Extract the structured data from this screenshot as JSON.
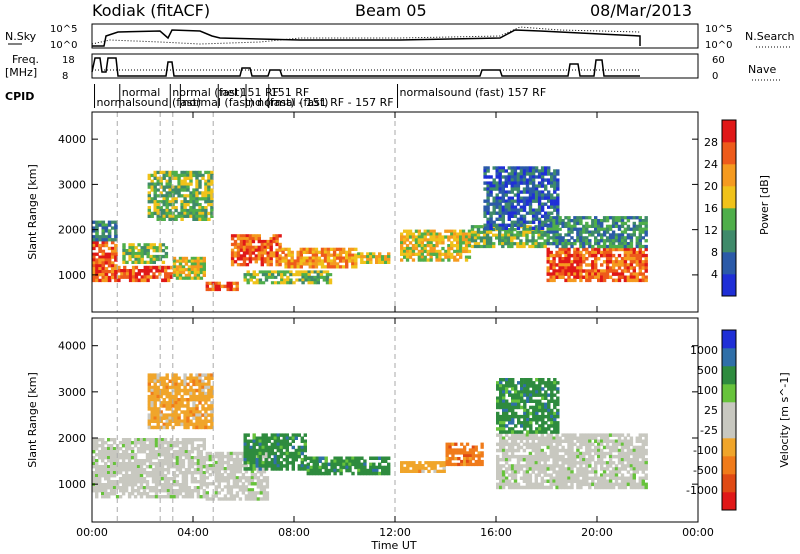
{
  "header": {
    "station": "Kodiak (fitACF)",
    "beam": "Beam 05",
    "date": "08/Mar/2013"
  },
  "strips": {
    "nsky_label": "N.Sky",
    "nsky_ticks": [
      "10^5",
      "10^0"
    ],
    "nsearch_label": "N.Search",
    "nsearch_ticks": [
      "10^5",
      "10^0"
    ],
    "freq_label_1": "Freq.",
    "freq_label_2": "[MHz]",
    "freq_ticks": [
      "18",
      "8"
    ],
    "nave_label": "Nave",
    "nave_ticks": [
      "60",
      "0"
    ],
    "cpid_label": "CPID",
    "cpid_entries": [
      {
        "t": "normal",
        "hour": 1.1,
        "row": 0
      },
      {
        "t": "normalsound (fast)",
        "hour": 0.1,
        "row": 1
      },
      {
        "t": "normal (fast)",
        "hour": 3.1,
        "row": 0
      },
      {
        "t": "normal (fast) normal (fast)",
        "hour": 3.5,
        "row": 1
      },
      {
        "t": "nel 151 RF",
        "hour": 5.0,
        "row": 0
      },
      {
        "t": "nd (fast) - 151 RF - 157 RF",
        "hour": 6.1,
        "row": 1
      },
      {
        "t": "151 RF",
        "hour": 7.0,
        "row": 0
      },
      {
        "t": "normalsound (fast) 157 RF",
        "hour": 12.1,
        "row": 0
      }
    ]
  },
  "time_axis": {
    "label": "Time UT",
    "ticks": [
      "00:00",
      "04:00",
      "08:00",
      "12:00",
      "16:00",
      "20:00",
      "00:00"
    ]
  },
  "panels": {
    "power_ylabel": "Slant Range [km]",
    "velocity_ylabel": "Slant Range [km]",
    "y_ticks": [
      "1000",
      "2000",
      "3000",
      "4000"
    ],
    "power_cbar_label": "Power [dB]",
    "power_cbar_ticks": [
      "4",
      "8",
      "12",
      "16",
      "20",
      "24",
      "28"
    ],
    "velocity_cbar_label": "Velocity [m s^-1]",
    "velocity_cbar_ticks": [
      "1000",
      "500",
      "100",
      "25",
      "-25",
      "-100",
      "-500",
      "-1000"
    ]
  },
  "colors": {
    "power_scale": [
      "#1f2fd6",
      "#2b5aa8",
      "#3f8a6a",
      "#4fae4a",
      "#f0c21a",
      "#f59a1f",
      "#ee5b1b",
      "#e01818"
    ],
    "velocity_scale": [
      "#1f2fd6",
      "#2f6fa8",
      "#2e8b3e",
      "#67c33b",
      "#c8c8c0",
      "#c8c8c0",
      "#f0a52a",
      "#f07b1a",
      "#e04a14",
      "#e01818"
    ]
  },
  "chart_data": {
    "type": "heatmap",
    "x_range_hours": [
      0,
      24
    ],
    "y_range_km": [
      180,
      4600
    ],
    "power_ylim_db": [
      0,
      32
    ],
    "velocity_ylim": [
      -1000,
      1000
    ],
    "power_regions": [
      {
        "t0": 0.0,
        "t1": 1.0,
        "r0": 850,
        "r1": 1750,
        "level": 6
      },
      {
        "t0": 0.0,
        "t1": 1.0,
        "r0": 1750,
        "r1": 2200,
        "level": 2
      },
      {
        "t0": 1.0,
        "t1": 3.2,
        "r0": 850,
        "r1": 1200,
        "level": 6
      },
      {
        "t0": 1.2,
        "t1": 3.0,
        "r0": 1250,
        "r1": 1700,
        "level": 3
      },
      {
        "t0": 3.2,
        "t1": 4.5,
        "r0": 900,
        "r1": 1400,
        "level": 4
      },
      {
        "t0": 2.2,
        "t1": 4.8,
        "r0": 2200,
        "r1": 3300,
        "level": 3
      },
      {
        "t0": 4.5,
        "t1": 5.8,
        "r0": 650,
        "r1": 850,
        "level": 6
      },
      {
        "t0": 5.5,
        "t1": 7.5,
        "r0": 1200,
        "r1": 1900,
        "level": 6
      },
      {
        "t0": 7.5,
        "t1": 10.5,
        "r0": 1150,
        "r1": 1600,
        "level": 5
      },
      {
        "t0": 6.0,
        "t1": 9.5,
        "r0": 800,
        "r1": 1100,
        "level": 3
      },
      {
        "t0": 10.5,
        "t1": 11.8,
        "r0": 1250,
        "r1": 1500,
        "level": 4
      },
      {
        "t0": 12.2,
        "t1": 15.0,
        "r0": 1300,
        "r1": 2000,
        "level": 4
      },
      {
        "t0": 15.0,
        "t1": 18.0,
        "r0": 1600,
        "r1": 2100,
        "level": 3
      },
      {
        "t0": 15.5,
        "t1": 18.5,
        "r0": 2000,
        "r1": 3400,
        "level": 1
      },
      {
        "t0": 18.0,
        "t1": 22.0,
        "r0": 850,
        "r1": 1600,
        "level": 6
      },
      {
        "t0": 18.0,
        "t1": 22.0,
        "r0": 1600,
        "r1": 2300,
        "level": 2
      }
    ],
    "velocity_regions": [
      {
        "t0": 0.0,
        "t1": 4.5,
        "r0": 700,
        "r1": 2000,
        "level": 25
      },
      {
        "t0": 2.2,
        "t1": 4.8,
        "r0": 2200,
        "r1": 3400,
        "level": -100
      },
      {
        "t0": 4.5,
        "t1": 7.0,
        "r0": 650,
        "r1": 1700,
        "level": 25
      },
      {
        "t0": 6.0,
        "t1": 8.5,
        "r0": 1300,
        "r1": 2100,
        "level": 100
      },
      {
        "t0": 8.5,
        "t1": 11.8,
        "r0": 1200,
        "r1": 1600,
        "level": 100
      },
      {
        "t0": 12.2,
        "t1": 14.0,
        "r0": 1250,
        "r1": 1500,
        "level": -100
      },
      {
        "t0": 14.0,
        "t1": 15.5,
        "r0": 1400,
        "r1": 1900,
        "level": -500
      },
      {
        "t0": 16.0,
        "t1": 22.0,
        "r0": 900,
        "r1": 2100,
        "level": 25
      },
      {
        "t0": 16.0,
        "t1": 18.5,
        "r0": 2100,
        "r1": 3300,
        "level": 100
      }
    ]
  }
}
